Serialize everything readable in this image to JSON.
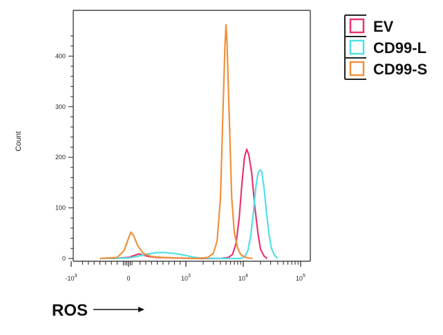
{
  "chart_data": {
    "type": "line",
    "title": "",
    "ylabel": "Count",
    "xlabel": "ROS",
    "x_scale": "biexponential",
    "ylim": [
      0,
      470
    ],
    "y_ticks": [
      0,
      100,
      200,
      300,
      400
    ],
    "x_ticks": [
      "-10^3",
      "0",
      "10^3",
      "10^4",
      "10^5"
    ],
    "grid": false,
    "legend_position": "top-right",
    "series": [
      {
        "name": "EV",
        "color": "#e8356e",
        "points": [
          [
            -300,
            0
          ],
          [
            0,
            2
          ],
          [
            100,
            6
          ],
          [
            180,
            9
          ],
          [
            250,
            7
          ],
          [
            350,
            4
          ],
          [
            500,
            2
          ],
          [
            800,
            1
          ],
          [
            1500,
            0
          ],
          [
            4000,
            0
          ],
          [
            5500,
            2
          ],
          [
            6500,
            8
          ],
          [
            7500,
            30
          ],
          [
            8500,
            80
          ],
          [
            9500,
            150
          ],
          [
            10500,
            200
          ],
          [
            11500,
            216
          ],
          [
            12500,
            205
          ],
          [
            14000,
            170
          ],
          [
            16000,
            100
          ],
          [
            18000,
            50
          ],
          [
            20000,
            18
          ],
          [
            23000,
            5
          ],
          [
            26000,
            0
          ]
        ]
      },
      {
        "name": "CD99-L",
        "color": "#4fe0e6",
        "points": [
          [
            -500,
            0
          ],
          [
            0,
            1
          ],
          [
            150,
            4
          ],
          [
            300,
            8
          ],
          [
            450,
            11
          ],
          [
            600,
            12
          ],
          [
            800,
            10
          ],
          [
            1000,
            6
          ],
          [
            1300,
            3
          ],
          [
            1800,
            1
          ],
          [
            4000,
            0
          ],
          [
            9000,
            0
          ],
          [
            10500,
            3
          ],
          [
            12000,
            15
          ],
          [
            13500,
            45
          ],
          [
            15000,
            90
          ],
          [
            16500,
            140
          ],
          [
            18000,
            168
          ],
          [
            19500,
            175
          ],
          [
            21000,
            172
          ],
          [
            23000,
            140
          ],
          [
            25500,
            90
          ],
          [
            28000,
            50
          ],
          [
            31000,
            20
          ],
          [
            35000,
            6
          ],
          [
            40000,
            0
          ]
        ]
      },
      {
        "name": "CD99-S",
        "color": "#f0913a",
        "points": [
          [
            -500,
            0
          ],
          [
            -200,
            2
          ],
          [
            -80,
            15
          ],
          [
            0,
            40
          ],
          [
            40,
            52
          ],
          [
            90,
            45
          ],
          [
            160,
            25
          ],
          [
            260,
            10
          ],
          [
            400,
            4
          ],
          [
            600,
            2
          ],
          [
            900,
            1
          ],
          [
            1600,
            0
          ],
          [
            2400,
            2
          ],
          [
            3000,
            10
          ],
          [
            3500,
            35
          ],
          [
            4000,
            120
          ],
          [
            4400,
            280
          ],
          [
            4800,
            420
          ],
          [
            5000,
            462
          ],
          [
            5200,
            430
          ],
          [
            5700,
            280
          ],
          [
            6300,
            120
          ],
          [
            7000,
            50
          ],
          [
            8000,
            20
          ],
          [
            9000,
            8
          ],
          [
            10500,
            3
          ],
          [
            12500,
            1
          ],
          [
            14500,
            0
          ]
        ]
      }
    ]
  },
  "legend": {
    "items": [
      {
        "label": "EV",
        "color": "#e8356e"
      },
      {
        "label": "CD99-L",
        "color": "#4fe0e6"
      },
      {
        "label": "CD99-S",
        "color": "#f0913a"
      }
    ]
  }
}
